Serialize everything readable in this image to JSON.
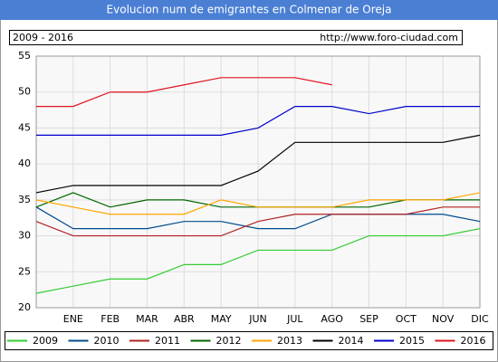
{
  "chart_data": {
    "type": "line",
    "title": "Evolucion num de emigrantes en Colmenar de Oreja",
    "subtitle": "2009 - 2016",
    "source": "http://www.foro-ciudad.com",
    "categories": [
      null,
      "ENE",
      "FEB",
      "MAR",
      "ABR",
      "MAY",
      "JUN",
      "JUL",
      "AGO",
      "SEP",
      "OCT",
      "NOV",
      "DIC"
    ],
    "ylim": [
      20,
      55
    ],
    "yticks": [
      20,
      25,
      30,
      35,
      40,
      45,
      50,
      55
    ],
    "grid": true,
    "series": [
      {
        "name": "2009",
        "color": "#33cc33",
        "values": [
          22,
          23,
          24,
          24,
          26,
          26,
          28,
          28,
          28,
          30,
          30,
          30,
          31
        ]
      },
      {
        "name": "2010",
        "color": "#004c8c",
        "values": [
          34,
          31,
          31,
          31,
          32,
          32,
          31,
          31,
          33,
          33,
          33,
          33,
          32
        ]
      },
      {
        "name": "2011",
        "color": "#b22222",
        "values": [
          32,
          30,
          30,
          30,
          30,
          30,
          32,
          33,
          33,
          33,
          33,
          34,
          34
        ]
      },
      {
        "name": "2012",
        "color": "#006600",
        "values": [
          34,
          36,
          34,
          35,
          35,
          34,
          34,
          34,
          34,
          34,
          35,
          35,
          35
        ]
      },
      {
        "name": "2013",
        "color": "#ffa500",
        "values": [
          35,
          34,
          33,
          33,
          33,
          35,
          34,
          34,
          34,
          35,
          35,
          35,
          36
        ]
      },
      {
        "name": "2014",
        "color": "#000000",
        "values": [
          36,
          37,
          37,
          37,
          37,
          37,
          39,
          43,
          43,
          43,
          43,
          43,
          44
        ]
      },
      {
        "name": "2015",
        "color": "#0000cc",
        "values": [
          44,
          44,
          44,
          44,
          44,
          44,
          45,
          48,
          48,
          47,
          48,
          48,
          48
        ]
      },
      {
        "name": "2016",
        "color": "#e0141e",
        "values": [
          48,
          48,
          50,
          50,
          51,
          52,
          52,
          52,
          51,
          null,
          null,
          null,
          null
        ]
      }
    ]
  }
}
